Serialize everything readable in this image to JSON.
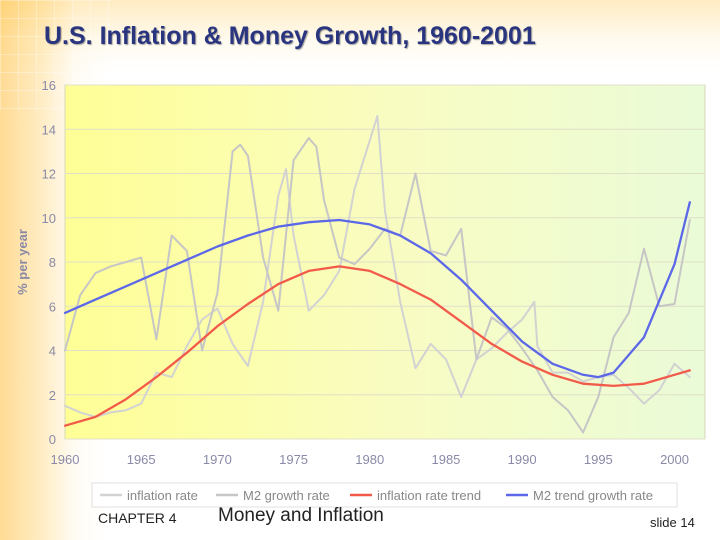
{
  "slide": {
    "title": "U.S. Inflation & Money Growth, 1960-2001",
    "footer_chapter": "CHAPTER 4",
    "footer_topic": "Money and Inflation",
    "slide_number": "slide 14"
  },
  "chart_data": {
    "type": "line",
    "title": "",
    "xlabel": "",
    "ylabel": "% per year",
    "xlim": [
      1960,
      2002
    ],
    "ylim": [
      0,
      16
    ],
    "x_ticks": [
      "1960",
      "1965",
      "1970",
      "1975",
      "1980",
      "1985",
      "1990",
      "1995",
      "2000"
    ],
    "y_ticks": [
      "0",
      "2",
      "4",
      "6",
      "8",
      "10",
      "12",
      "14",
      "16"
    ],
    "grid": true,
    "legend_position": "bottom",
    "series": [
      {
        "name": "inflation rate",
        "color": "#d2d2d2",
        "x": [
          1960,
          1961,
          1962,
          1963,
          1964,
          1965,
          1966,
          1967,
          1968,
          1969,
          1970,
          1971,
          1972,
          1973,
          1974,
          1974.5,
          1975,
          1976,
          1977,
          1978,
          1979,
          1980,
          1980.5,
          1981,
          1982,
          1983,
          1984,
          1985,
          1986,
          1987,
          1988,
          1989,
          1990,
          1990.8,
          1991,
          1992,
          1993,
          1994,
          1995,
          1996,
          1997,
          1998,
          1999,
          2000,
          2001
        ],
        "values": [
          1.5,
          1.2,
          1.0,
          1.2,
          1.3,
          1.6,
          3.0,
          2.8,
          4.2,
          5.4,
          5.9,
          4.3,
          3.3,
          6.2,
          11.0,
          12.2,
          9.2,
          5.8,
          6.5,
          7.6,
          11.3,
          13.5,
          14.6,
          10.3,
          6.2,
          3.2,
          4.3,
          3.6,
          1.9,
          3.6,
          4.1,
          4.8,
          5.4,
          6.2,
          4.2,
          3.0,
          3.0,
          2.6,
          2.8,
          2.9,
          2.3,
          1.6,
          2.2,
          3.4,
          2.8
        ]
      },
      {
        "name": "M2 growth rate",
        "color": "#c6c6c6",
        "x": [
          1960,
          1961,
          1962,
          1963,
          1964,
          1965,
          1966,
          1967,
          1968,
          1969,
          1970,
          1971,
          1971.5,
          1972,
          1973,
          1974,
          1975,
          1976,
          1976.5,
          1977,
          1978,
          1979,
          1980,
          1981,
          1982,
          1983,
          1984,
          1985,
          1986,
          1987,
          1988,
          1989,
          1990,
          1991,
          1992,
          1993,
          1994,
          1995,
          1996,
          1997,
          1998,
          1999,
          2000,
          2001
        ],
        "values": [
          4.0,
          6.5,
          7.5,
          7.8,
          8.0,
          8.2,
          4.5,
          9.2,
          8.5,
          4.0,
          6.6,
          13.0,
          13.3,
          12.8,
          8.2,
          5.8,
          12.6,
          13.6,
          13.2,
          10.8,
          8.2,
          7.9,
          8.6,
          9.5,
          9.2,
          12.0,
          8.5,
          8.3,
          9.5,
          3.6,
          5.5,
          5.0,
          4.1,
          3.1,
          1.9,
          1.3,
          0.3,
          1.9,
          4.6,
          5.7,
          8.6,
          6.0,
          6.1,
          9.9
        ]
      },
      {
        "name": "inflation rate trend",
        "color": "#f25a4a",
        "x": [
          1960,
          1962,
          1964,
          1966,
          1968,
          1970,
          1972,
          1974,
          1976,
          1978,
          1980,
          1982,
          1984,
          1986,
          1988,
          1990,
          1992,
          1994,
          1996,
          1998,
          2000,
          2001
        ],
        "values": [
          0.6,
          1.0,
          1.8,
          2.8,
          3.9,
          5.1,
          6.1,
          7.0,
          7.6,
          7.8,
          7.6,
          7.0,
          6.3,
          5.3,
          4.3,
          3.5,
          2.9,
          2.5,
          2.4,
          2.5,
          2.9,
          3.1
        ]
      },
      {
        "name": "M2 trend growth rate",
        "color": "#5c68e8",
        "x": [
          1960,
          1962,
          1964,
          1966,
          1968,
          1970,
          1972,
          1974,
          1976,
          1978,
          1980,
          1982,
          1984,
          1986,
          1988,
          1990,
          1992,
          1994,
          1995,
          1996,
          1998,
          2000,
          2001
        ],
        "values": [
          5.7,
          6.3,
          6.9,
          7.5,
          8.1,
          8.7,
          9.2,
          9.6,
          9.8,
          9.9,
          9.7,
          9.2,
          8.4,
          7.2,
          5.8,
          4.4,
          3.4,
          2.9,
          2.8,
          3.0,
          4.6,
          7.9,
          10.7
        ]
      }
    ]
  }
}
